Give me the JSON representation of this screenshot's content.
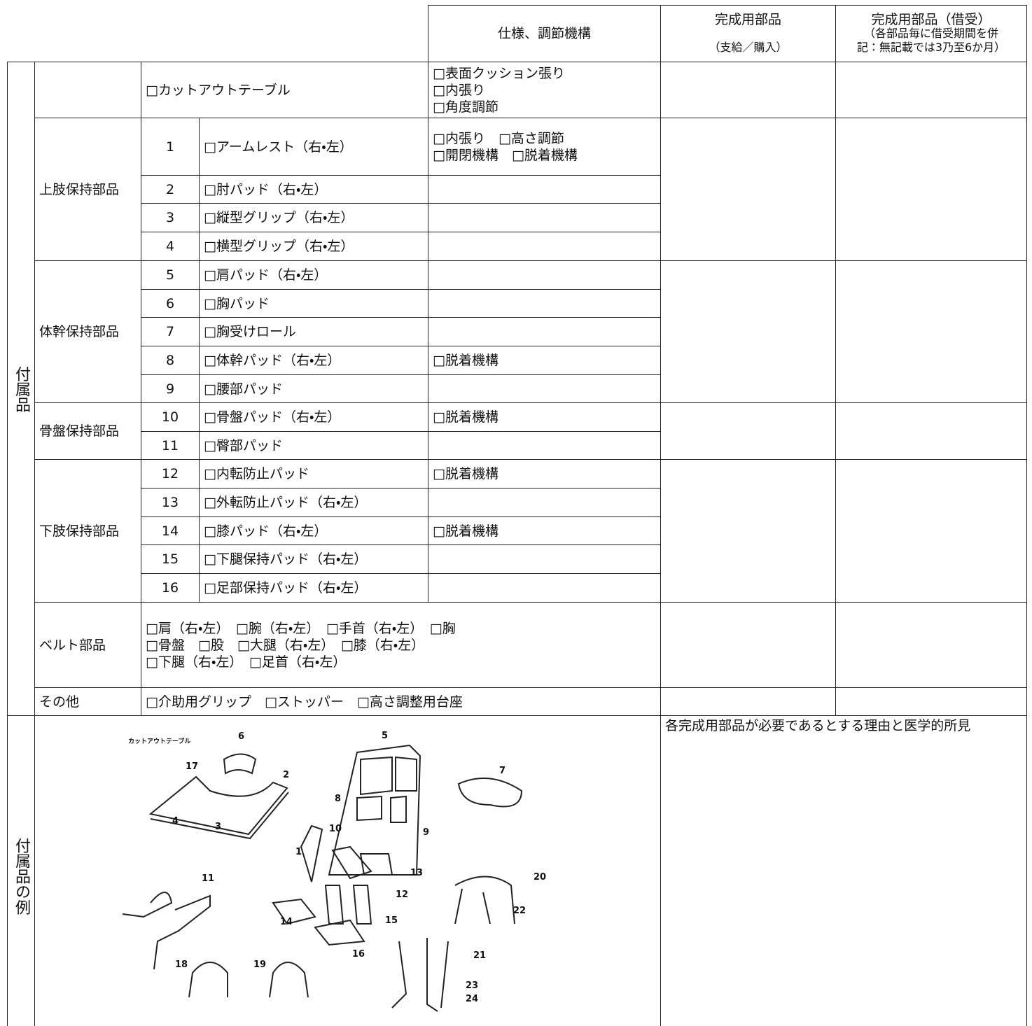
{
  "header": {
    "spec": "仕様、調節機構",
    "completion": [
      "完成用部品",
      "（支給／購入）"
    ],
    "rental": [
      "完成用部品（借受）",
      "（各部品毎に借受期間を併",
      "記：無記載では3乃至6か月）"
    ]
  },
  "accessories": {
    "label": "付属品",
    "cutout": {
      "name": "□カットアウトテーブル",
      "spec": [
        "□表面クッション張り",
        "□内張り",
        "□角度調節"
      ]
    },
    "groups": [
      {
        "name": "上肢保持部品",
        "items": [
          {
            "no": 1,
            "name": "□アームレスト（右・左）",
            "spec": [
              "□内張り　□高さ調節",
              "□開閉機構　□脱着機構"
            ]
          },
          {
            "no": 2,
            "name": "□肘パッド（右・左）",
            "spec": []
          },
          {
            "no": 3,
            "name": "□縦型グリップ（右・左）",
            "spec": []
          },
          {
            "no": 4,
            "name": "□横型グリップ（右・左）",
            "spec": []
          }
        ]
      },
      {
        "name": "体幹保持部品",
        "items": [
          {
            "no": 5,
            "name": "□肩パッド（右・左）",
            "spec": []
          },
          {
            "no": 6,
            "name": "□胸パッド",
            "spec": []
          },
          {
            "no": 7,
            "name": "□胸受けロール",
            "spec": []
          },
          {
            "no": 8,
            "name": "□体幹パッド（右・左）",
            "spec": [
              "□脱着機構"
            ]
          },
          {
            "no": 9,
            "name": "□腰部パッド",
            "spec": []
          }
        ]
      },
      {
        "name": "骨盤保持部品",
        "items": [
          {
            "no": 10,
            "name": "□骨盤パッド（右・左）",
            "spec": [
              "□脱着機構"
            ]
          },
          {
            "no": 11,
            "name": "□臀部パッド",
            "spec": []
          }
        ]
      },
      {
        "name": "下肢保持部品",
        "items": [
          {
            "no": 12,
            "name": "□内転防止パッド",
            "spec": [
              "□脱着機構"
            ]
          },
          {
            "no": 13,
            "name": "□外転防止パッド（右・左）",
            "spec": []
          },
          {
            "no": 14,
            "name": "□膝パッド（右・左）",
            "spec": [
              "□脱着機構"
            ]
          },
          {
            "no": 15,
            "name": "□下腿保持パッド（右・左）",
            "spec": []
          },
          {
            "no": 16,
            "name": "□足部保持パッド（右・左）",
            "spec": []
          }
        ]
      }
    ],
    "belt": {
      "name": "ベルト部品",
      "lines": [
        "□肩（右・左）　□腕（右・左）　□手首（右・左）　□胸",
        "□骨盤　□股　□大腿（右・左）　□膝（右・左）",
        "□下腿（右・左）　□足首（右・左）"
      ]
    },
    "other": {
      "name": "その他",
      "text": "□介助用グリップ　□ストッパー　□高さ調整用台座"
    }
  },
  "examples": {
    "label": "付属品の例",
    "note": "各完成用部品が必要であるとする理由と医学的所見",
    "figure_labels": [
      "カットアウトテーブル",
      "6",
      "5",
      "17",
      "2",
      "7",
      "8",
      "10",
      "9",
      "4",
      "3",
      "1",
      "13",
      "11",
      "20",
      "12",
      "22",
      "14",
      "15",
      "16",
      "21",
      "18",
      "19",
      "23",
      "24"
    ]
  }
}
